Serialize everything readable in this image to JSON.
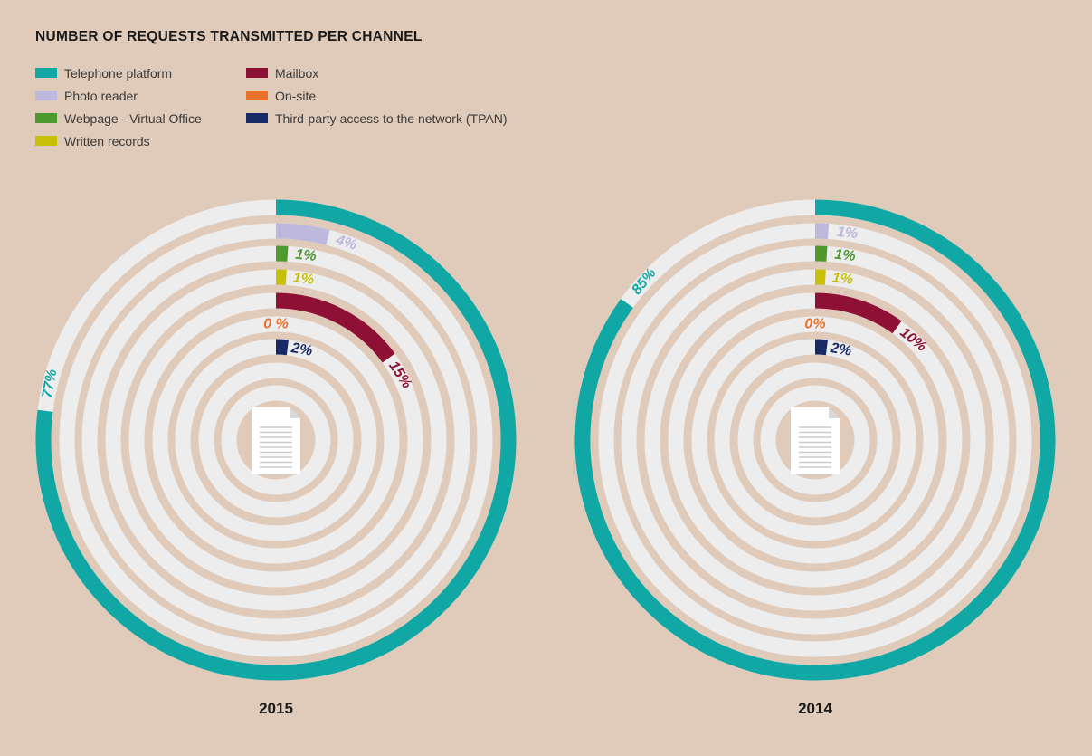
{
  "title": "NUMBER OF REQUESTS TRANSMITTED PER CHANNEL",
  "legend": {
    "col1": [
      {
        "label": "Telephone platform",
        "color": "#10a7a5"
      },
      {
        "label": "Photo reader",
        "color": "#bdb8dc"
      },
      {
        "label": "Webpage - Virtual Office",
        "color": "#4e9a2e"
      },
      {
        "label": "Written records",
        "color": "#c8c007"
      }
    ],
    "col2": [
      {
        "label": "Mailbox",
        "color": "#8e1035"
      },
      {
        "label": "On-site",
        "color": "#e8702a"
      },
      {
        "label": "Third-party access to the network (TPAN)",
        "color": "#172a66"
      }
    ]
  },
  "chart_data": [
    {
      "type": "radial_bar",
      "title": "2015",
      "series": [
        {
          "name": "Telephone platform",
          "value": 77,
          "label": "77%",
          "color": "#10a7a5"
        },
        {
          "name": "Photo reader",
          "value": 4,
          "label": "4%",
          "color": "#bdb8dc"
        },
        {
          "name": "Webpage - Virtual Office",
          "value": 1,
          "label": "1%",
          "color": "#4e9a2e"
        },
        {
          "name": "Written records",
          "value": 1,
          "label": "1%",
          "color": "#c8c007"
        },
        {
          "name": "Mailbox",
          "value": 15,
          "label": "15%",
          "color": "#8e1035"
        },
        {
          "name": "On-site",
          "value": 0,
          "label": "0 %",
          "color": "#e8702a"
        },
        {
          "name": "Third-party access to the network (TPAN)",
          "value": 2,
          "label": "2%",
          "color": "#172a66"
        }
      ]
    },
    {
      "type": "radial_bar",
      "title": "2014",
      "series": [
        {
          "name": "Telephone platform",
          "value": 85,
          "label": "85%",
          "color": "#10a7a5"
        },
        {
          "name": "Photo reader",
          "value": 1,
          "label": "1%",
          "color": "#bdb8dc"
        },
        {
          "name": "Webpage - Virtual Office",
          "value": 1,
          "label": "1%",
          "color": "#4e9a2e"
        },
        {
          "name": "Written records",
          "value": 1,
          "label": "1%",
          "color": "#c8c007"
        },
        {
          "name": "Mailbox",
          "value": 10,
          "label": "10%",
          "color": "#8e1035"
        },
        {
          "name": "On-site",
          "value": 0,
          "label": "0%",
          "color": "#e8702a"
        },
        {
          "name": "Third-party access to the network (TPAN)",
          "value": 2,
          "label": "2%",
          "color": "#172a66"
        }
      ]
    }
  ]
}
